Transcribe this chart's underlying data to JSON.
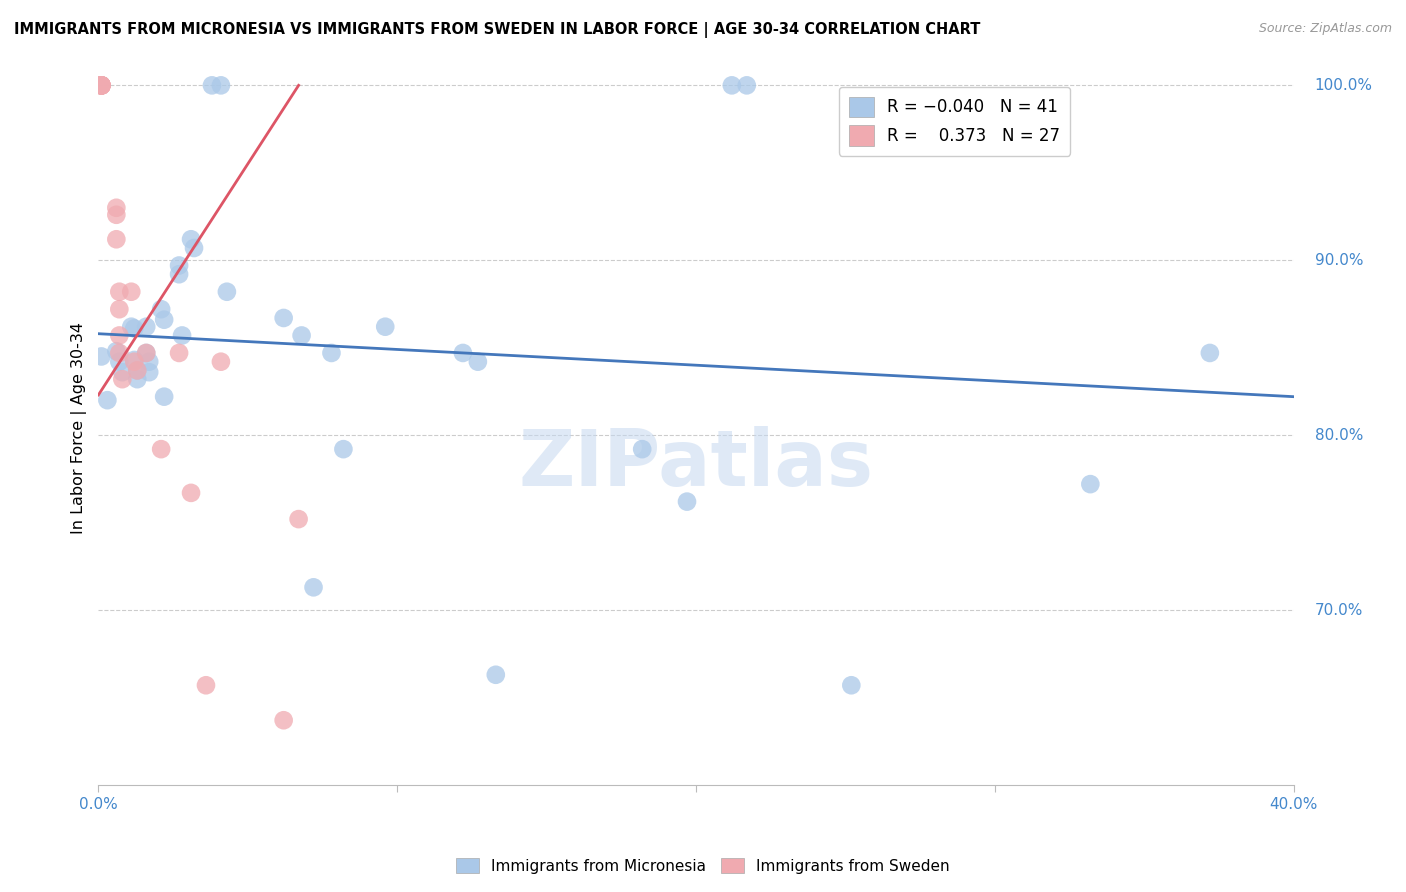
{
  "title": "IMMIGRANTS FROM MICRONESIA VS IMMIGRANTS FROM SWEDEN IN LABOR FORCE | AGE 30-34 CORRELATION CHART",
  "source": "Source: ZipAtlas.com",
  "ylabel": "In Labor Force | Age 30-34",
  "x_min": 0.0,
  "x_max": 0.4,
  "y_min": 0.6,
  "y_max": 1.008,
  "micronesia_color": "#aac8e8",
  "sweden_color": "#f0aab0",
  "micronesia_line_color": "#4477bb",
  "sweden_line_color": "#dd5566",
  "watermark": "ZIPatlas",
  "micronesia_x": [
    0.001,
    0.003,
    0.006,
    0.007,
    0.008,
    0.011,
    0.012,
    0.012,
    0.013,
    0.013,
    0.016,
    0.016,
    0.017,
    0.017,
    0.021,
    0.022,
    0.022,
    0.027,
    0.027,
    0.028,
    0.031,
    0.032,
    0.038,
    0.041,
    0.043,
    0.062,
    0.068,
    0.072,
    0.078,
    0.082,
    0.096,
    0.122,
    0.127,
    0.133,
    0.182,
    0.197,
    0.212,
    0.217,
    0.252,
    0.332,
    0.372
  ],
  "micronesia_y": [
    0.845,
    0.82,
    0.848,
    0.842,
    0.836,
    0.862,
    0.861,
    0.843,
    0.837,
    0.832,
    0.862,
    0.847,
    0.842,
    0.836,
    0.872,
    0.866,
    0.822,
    0.897,
    0.892,
    0.857,
    0.912,
    0.907,
    1.0,
    1.0,
    0.882,
    0.867,
    0.857,
    0.713,
    0.847,
    0.792,
    0.862,
    0.847,
    0.842,
    0.663,
    0.792,
    0.762,
    1.0,
    1.0,
    0.657,
    0.772,
    0.847
  ],
  "sweden_x": [
    0.001,
    0.001,
    0.001,
    0.001,
    0.001,
    0.001,
    0.001,
    0.001,
    0.006,
    0.006,
    0.006,
    0.007,
    0.007,
    0.007,
    0.007,
    0.008,
    0.011,
    0.012,
    0.013,
    0.016,
    0.021,
    0.027,
    0.031,
    0.036,
    0.041,
    0.062,
    0.067
  ],
  "sweden_y": [
    1.0,
    1.0,
    1.0,
    1.0,
    1.0,
    1.0,
    1.0,
    1.0,
    0.93,
    0.926,
    0.912,
    0.882,
    0.872,
    0.857,
    0.847,
    0.832,
    0.882,
    0.842,
    0.837,
    0.847,
    0.792,
    0.847,
    0.767,
    0.657,
    0.842,
    0.637,
    0.752
  ],
  "micro_line_x": [
    0.0,
    0.4
  ],
  "micro_line_y": [
    0.858,
    0.822
  ],
  "sweden_line_x": [
    0.0,
    0.067
  ],
  "sweden_line_y": [
    0.823,
    1.0
  ]
}
